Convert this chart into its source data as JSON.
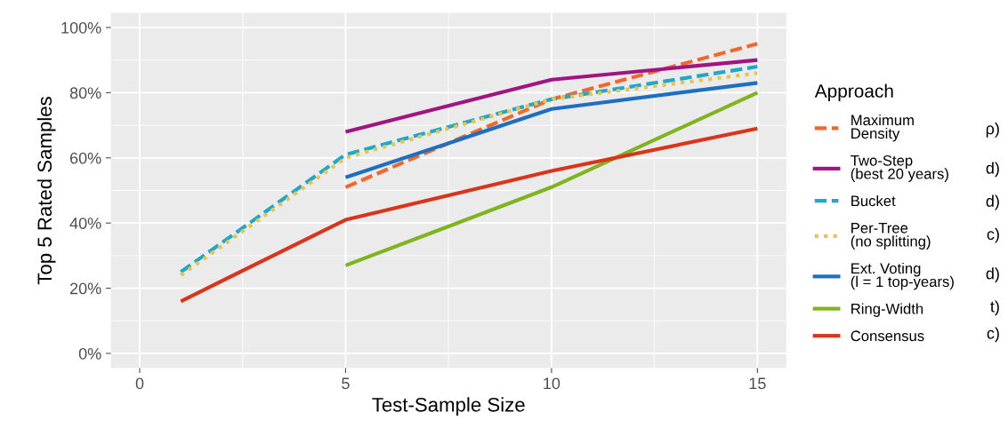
{
  "chart_data": {
    "type": "line",
    "xlabel": "Test-Sample Size",
    "ylabel": "Top 5 Rated Samples",
    "legend_title": "Approach",
    "legend": "right",
    "grid": true,
    "xlim": [
      -0.7,
      15.7
    ],
    "xticks": [
      0,
      5,
      10,
      15
    ],
    "ylim": [
      -4.5,
      104.5
    ],
    "yticks": [
      {
        "value": 0,
        "label": "0%"
      },
      {
        "value": 20,
        "label": "20%"
      },
      {
        "value": 40,
        "label": "40%"
      },
      {
        "value": 60,
        "label": "60%"
      },
      {
        "value": 80,
        "label": "80%"
      },
      {
        "value": 100,
        "label": "100%"
      }
    ],
    "series": [
      {
        "name": "Maximum\nDensity",
        "color": "#f0682d",
        "line_style": "dashed",
        "x": [
          5,
          10,
          15
        ],
        "values": [
          51,
          78,
          95
        ]
      },
      {
        "name": "Two-Step\n(best 20 years)",
        "color": "#a0157f",
        "line_style": "solid",
        "x": [
          5,
          10,
          15
        ],
        "values": [
          68,
          84,
          90
        ]
      },
      {
        "name": "Bucket",
        "color": "#1fa8c9",
        "line_style": "dashed",
        "x": [
          1,
          5,
          10,
          15
        ],
        "values": [
          25,
          61,
          78,
          88
        ]
      },
      {
        "name": "Per-Tree\n(no splitting)",
        "color": "#e8c44a",
        "line_style": "dotted",
        "x": [
          1,
          5,
          10,
          15
        ],
        "values": [
          24,
          60,
          78,
          86
        ]
      },
      {
        "name": "Ext. Voting\n(l = 1 top-years)",
        "color": "#1f6fc0",
        "line_style": "solid",
        "x": [
          5,
          10,
          15
        ],
        "values": [
          54,
          75,
          83
        ]
      },
      {
        "name": "Ring-Width",
        "color": "#7fb41f",
        "line_style": "solid",
        "x": [
          5,
          10,
          15
        ],
        "values": [
          27,
          51,
          80
        ]
      },
      {
        "name": "Consensus",
        "color": "#d8351b",
        "line_style": "solid",
        "x": [
          1,
          5,
          10,
          15
        ],
        "values": [
          16,
          41,
          56,
          69
        ]
      }
    ],
    "annotations": [
      "ρ)",
      "d)",
      "d)",
      "c)",
      "d)",
      "t)",
      "c)"
    ]
  }
}
